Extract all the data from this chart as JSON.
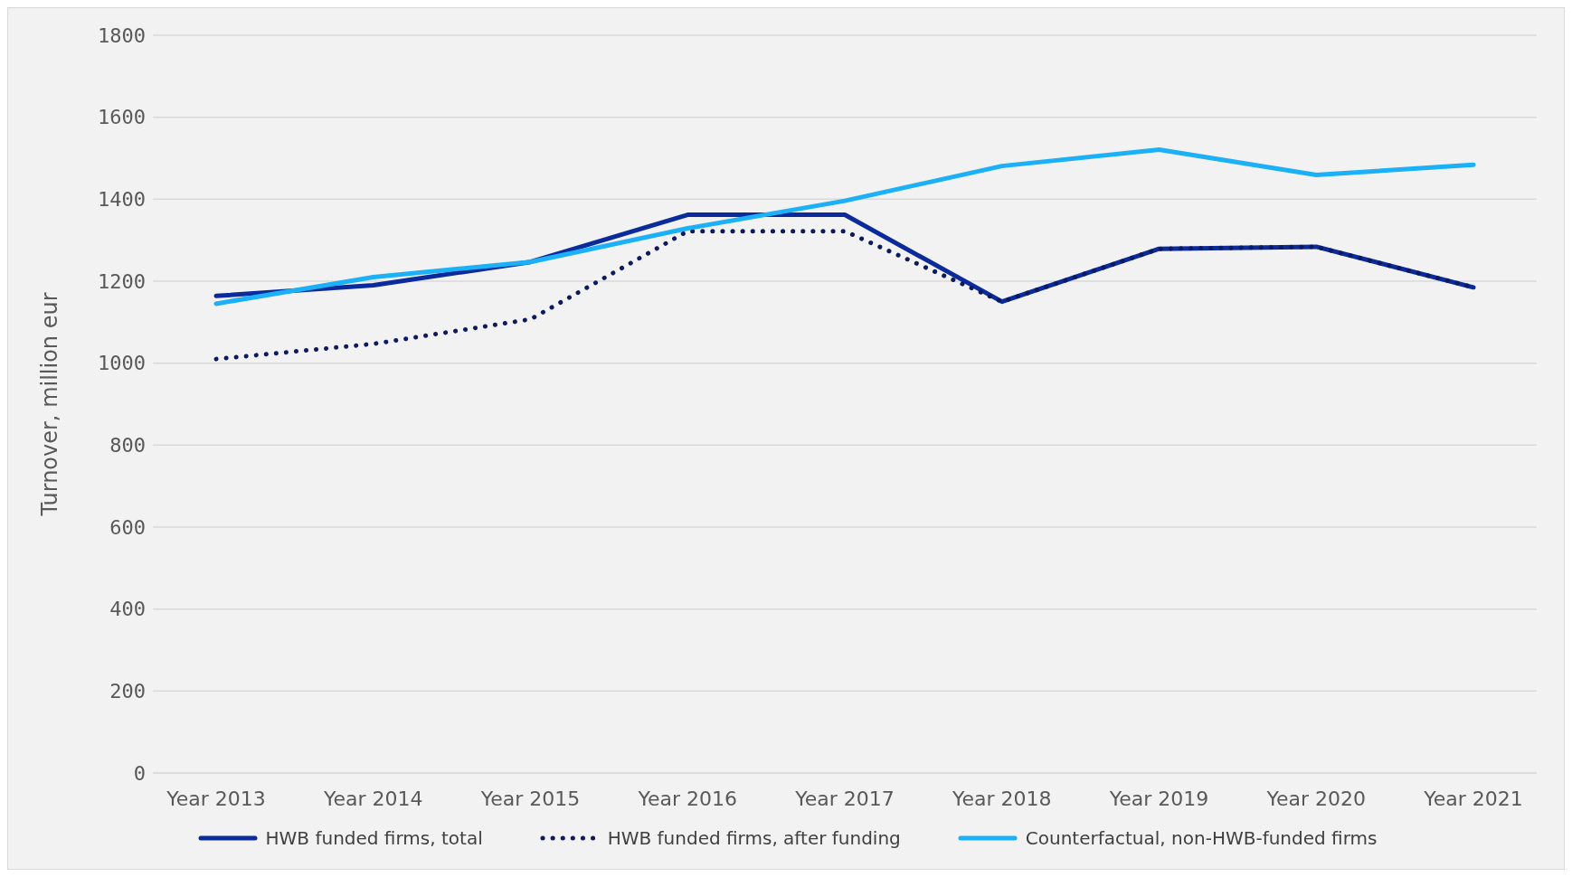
{
  "chart_data": {
    "type": "line",
    "ylabel": "Turnover, million eur",
    "categories": [
      "Year 2013",
      "Year 2014",
      "Year 2015",
      "Year 2016",
      "Year 2017",
      "Year 2018",
      "Year 2019",
      "Year 2020",
      "Year 2021"
    ],
    "series": [
      {
        "name": "HWB funded firms, total",
        "color": "#0b2a9c",
        "line_style": "solid",
        "values": [
          1164,
          1190,
          1247,
          1362,
          1362,
          1150,
          1279,
          1284,
          1185
        ]
      },
      {
        "name": "HWB funded firms, after funding",
        "color": "#0d1a5e",
        "line_style": "dotted",
        "values": [
          1010,
          1047,
          1107,
          1322,
          1322,
          1150,
          1279,
          1284,
          1185
        ]
      },
      {
        "name": "Counterfactual, non-HWB-funded firms",
        "color": "#1cb0f6",
        "line_style": "solid",
        "values": [
          1145,
          1210,
          1247,
          1329,
          1396,
          1481,
          1521,
          1459,
          1484
        ]
      }
    ],
    "ylim": [
      0,
      1800
    ],
    "yticks": [
      0,
      200,
      400,
      600,
      800,
      1000,
      1200,
      1400,
      1600,
      1800
    ],
    "grid": "y",
    "legend": "bottom",
    "marker": "none"
  }
}
